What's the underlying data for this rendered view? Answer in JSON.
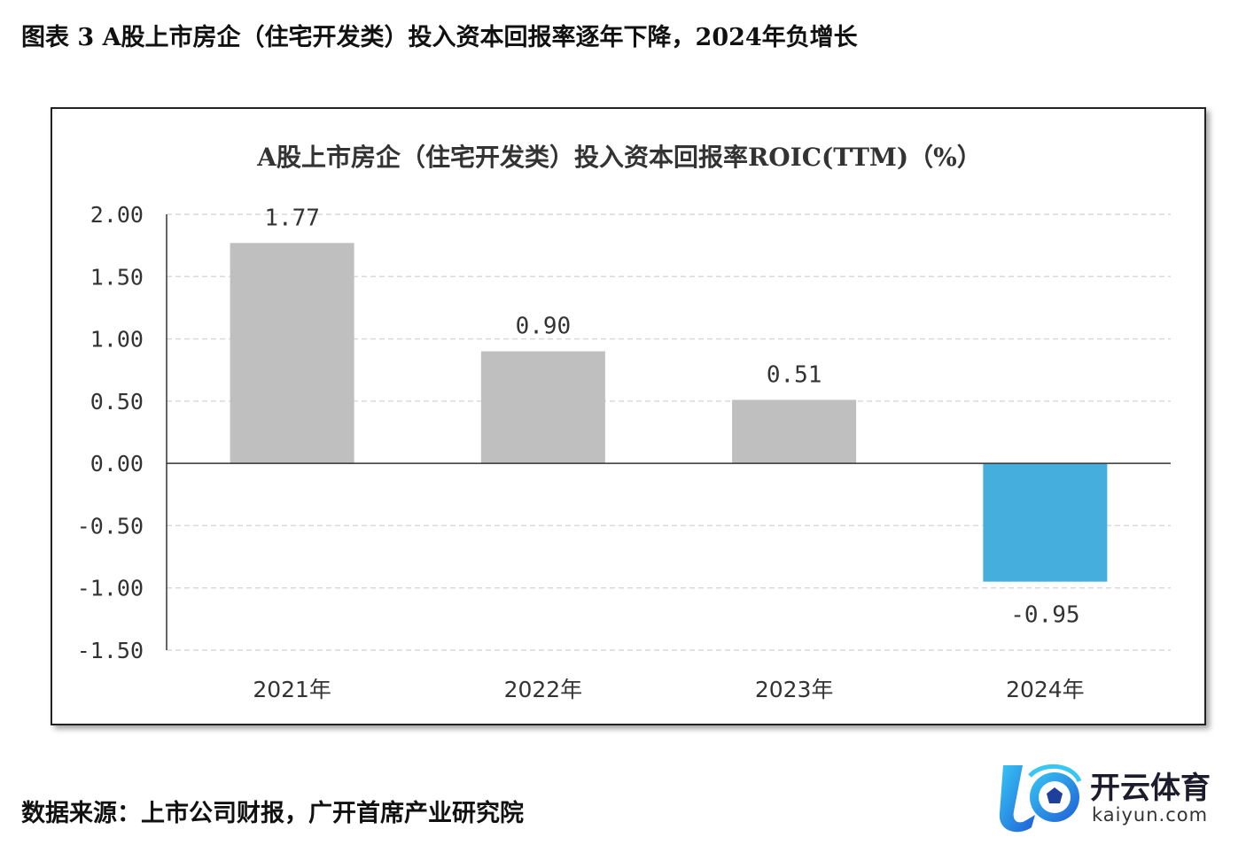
{
  "figure_title": "图表 3  A股上市房企（住宅开发类）投入资本回报率逐年下降，2024年负增长",
  "source_note": "数据来源：上市公司财报，广开首席产业研究院",
  "watermark": {
    "brand": "开云体育",
    "url": "kaiyun.com"
  },
  "colors": {
    "positive_bar": "#bfbfbf",
    "negative_bar": "#45aedd",
    "grid": "#d9d9d9",
    "axis": "#333333"
  },
  "chart_data": {
    "type": "bar",
    "title": "A股上市房企（住宅开发类）投入资本回报率ROIC(TTM)（%）",
    "categories": [
      "2021年",
      "2022年",
      "2023年",
      "2024年"
    ],
    "values": [
      1.77,
      0.9,
      0.51,
      -0.95
    ],
    "data_labels": [
      "1.77",
      "0.90",
      "0.51",
      "-0.95"
    ],
    "ylim": [
      -1.5,
      2.0
    ],
    "yticks": [
      "2.00",
      "1.50",
      "1.00",
      "0.50",
      "0.00",
      "-0.50",
      "-1.00",
      "-1.50"
    ],
    "ytick_values": [
      2.0,
      1.5,
      1.0,
      0.5,
      0.0,
      -0.5,
      -1.0,
      -1.5
    ],
    "grid": true,
    "legend": "none",
    "xlabel": "",
    "ylabel": ""
  }
}
